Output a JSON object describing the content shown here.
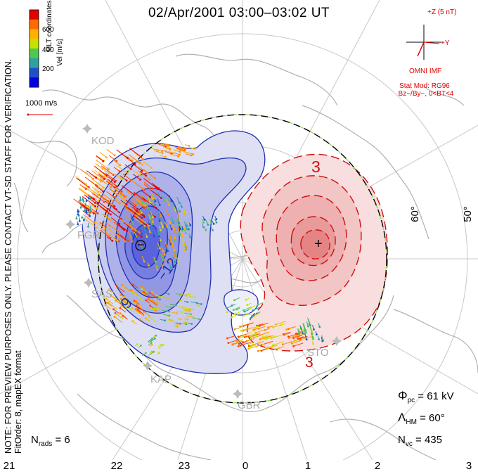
{
  "title": "02/Apr/2001 03:00–03:02 UT",
  "notes": {
    "preview": "NOTE: FOR PREVIEW PURPOSES ONLY. PLEASE CONTACT VT-SD STAFF FOR VERIFICATION.",
    "fit": "FitOrder: 8, mapEX format"
  },
  "colorbar": {
    "title": "Vel [m/s]",
    "coords": "MLT coordinates",
    "ticks": [
      "600",
      "400",
      "200"
    ],
    "colors": [
      "#e00000",
      "#ff6a00",
      "#ffb000",
      "#c8e000",
      "#50c850",
      "#30a0a0",
      "#2050c8",
      "#0000e0"
    ]
  },
  "ref_vector": "1000 m/s",
  "imf": {
    "z_label": "+Z (5 nT)",
    "y_label": "+Y",
    "source": "OMNI IMF",
    "model_line1": "Stat Mod: RG96",
    "model_line2": "Bz−/By−, 0<BT<4"
  },
  "stats": {
    "phi": "Φ",
    "phi_sub": "pc",
    "phi_val": " = 61 kV",
    "lambda": "Λ",
    "lambda_sub": "HM",
    "lambda_val": " = 60°",
    "nvc": "N",
    "nvc_sub": "vc",
    "nvc_val": " = 435",
    "nrads": "N",
    "nrads_sub": "rads",
    "nrads_val": " = 6"
  },
  "mlt_labels": [
    "21",
    "22",
    "23",
    "0",
    "1",
    "2",
    "3"
  ],
  "lat_labels": [
    "60°",
    "50°"
  ],
  "stations": [
    "KOD",
    "PGR",
    "SAS",
    "KAP",
    "GBR",
    "STO"
  ],
  "contour_labels": [
    "3",
    "3",
    "9",
    "−12"
  ],
  "markers": {
    "min": "−",
    "max": "+"
  },
  "colors": {
    "negative": "#1e2fb0",
    "positive": "#d01010",
    "negative_fill": "#6a74e0",
    "positive_fill": "#f08080",
    "grid": "#c8c8c8",
    "land": "#b0b0b0"
  }
}
